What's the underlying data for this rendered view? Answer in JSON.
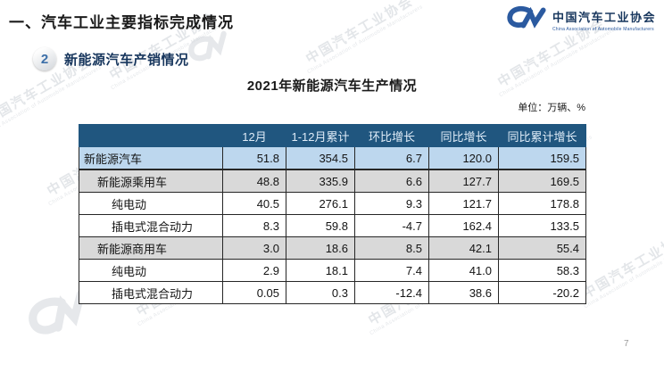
{
  "page": {
    "title": "一、汽车工业主要指标完成情况",
    "section_badge": "2",
    "section_title": "新能源汽车产销情况",
    "page_number": "7"
  },
  "logo": {
    "name_cn": "中国汽车工业协会",
    "name_en": "China Association of Automobile Manufacturers"
  },
  "watermark": {
    "text_cn": "中国汽车工业协会",
    "text_en": "China Association of Automobile Manufacturers"
  },
  "table": {
    "title": "2021年新能源汽车生产情况",
    "unit_label": "单位：万辆、%",
    "columns": [
      "",
      "12月",
      "1-12月累计",
      "环比增长",
      "同比增长",
      "同比累计增长"
    ],
    "rows": [
      {
        "label": "新能源汽车",
        "indent": 0,
        "style": "highlight-blue",
        "values": [
          "51.8",
          "354.5",
          "6.7",
          "120.0",
          "159.5"
        ]
      },
      {
        "label": "新能源乘用车",
        "indent": 1,
        "style": "stripe-gray",
        "values": [
          "48.8",
          "335.9",
          "6.6",
          "127.7",
          "169.5"
        ]
      },
      {
        "label": "纯电动",
        "indent": 2,
        "style": "plain",
        "values": [
          "40.5",
          "276.1",
          "9.3",
          "121.7",
          "178.8"
        ]
      },
      {
        "label": "插电式混合动力",
        "indent": 2,
        "style": "plain",
        "values": [
          "8.3",
          "59.8",
          "-4.7",
          "162.4",
          "133.5"
        ]
      },
      {
        "label": "新能源商用车",
        "indent": 1,
        "style": "stripe-gray",
        "values": [
          "3.0",
          "18.6",
          "8.5",
          "42.1",
          "55.4"
        ]
      },
      {
        "label": "纯电动",
        "indent": 2,
        "style": "plain",
        "values": [
          "2.9",
          "18.1",
          "7.4",
          "41.0",
          "58.3"
        ]
      },
      {
        "label": "插电式混合动力",
        "indent": 2,
        "style": "plain",
        "values": [
          "0.05",
          "0.3",
          "-12.4",
          "38.6",
          "-20.2"
        ]
      }
    ]
  },
  "colors": {
    "header_bg": "#20567f",
    "row_highlight": "#bdd7ee",
    "row_stripe": "#d9d9d9",
    "logo_blue": "#2b5aa0",
    "wm_color": "#c9ced4"
  }
}
